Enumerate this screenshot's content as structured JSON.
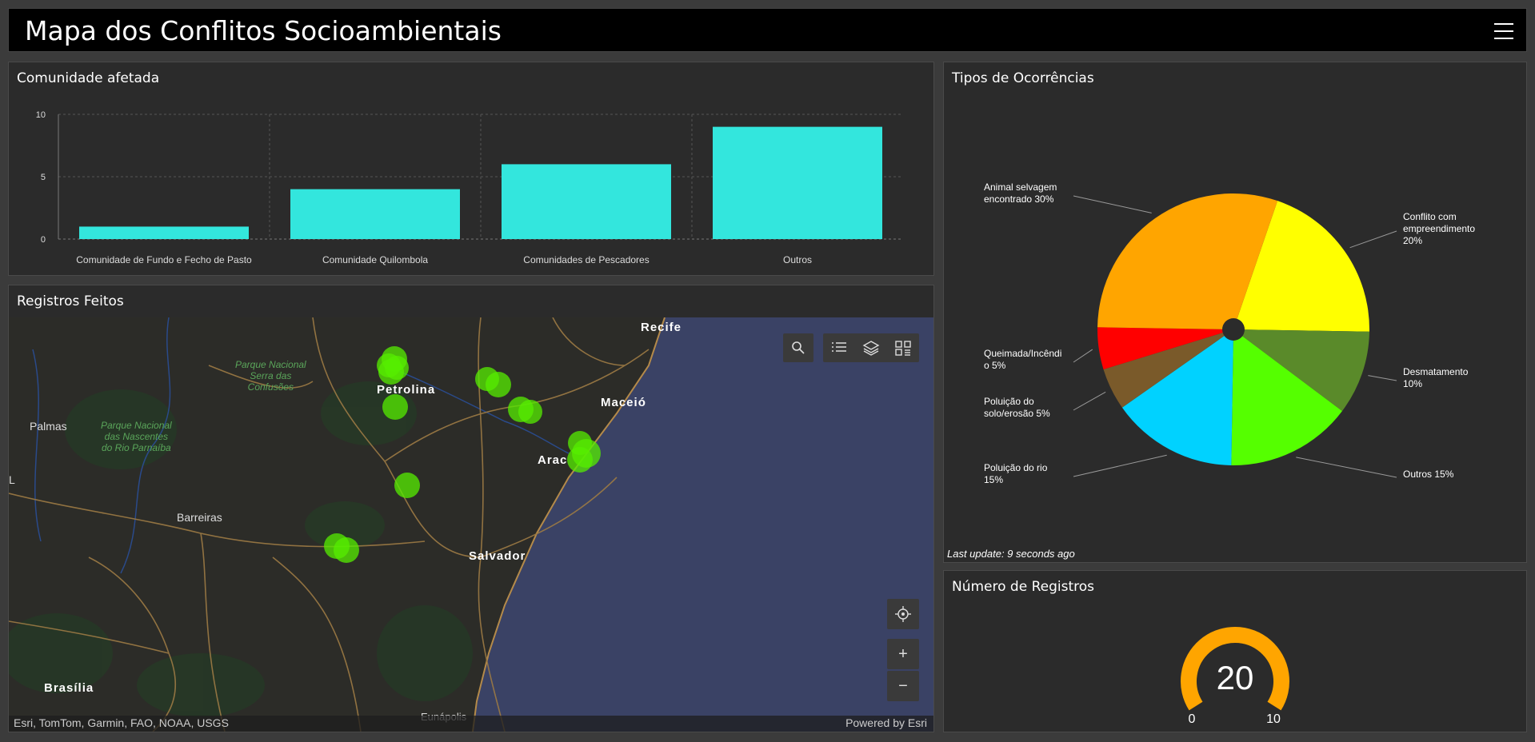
{
  "header": {
    "title": "Mapa dos Conflitos Socioambientais"
  },
  "bar_panel": {
    "title": "Comunidade afetada"
  },
  "map_panel": {
    "title": "Registros Feitos",
    "attribution": "Esri, TomTom, Garmin, FAO, NOAA, USGS",
    "powered_by": "Powered by Esri",
    "labels": {
      "recife": "Recife",
      "petrolina": "Petrolina",
      "maceio": "Maceió",
      "aracaju": "Arac",
      "palmas": "Palmas",
      "barreiras": "Barreiras",
      "salvador": "Salvador",
      "brasilia": "Brasília",
      "eunapolis": "Eunápolis",
      "park1": "Parque Nacional",
      "park1b": "Serra das",
      "park1c": "Confusões",
      "park2": "Parque Nacional",
      "park2b": "das Nascentes",
      "park2c": "do Rio Parnaíba",
      "edge": "L"
    },
    "tools": [
      "search-icon",
      "list-icon",
      "layers-icon",
      "qr-icon",
      "locate-icon",
      "zoom-in-icon",
      "zoom-out-icon"
    ],
    "zoom_in": "+",
    "zoom_out": "−"
  },
  "pie_panel": {
    "title": "Tipos de Ocorrências",
    "last_update": "Last update: 9 seconds ago"
  },
  "gauge_panel": {
    "title": "Número de Registros",
    "value": "20",
    "min": "0",
    "max": "10",
    "color": "#ffa500"
  },
  "chart_data": [
    {
      "type": "bar",
      "categories": [
        "Comunidade de Fundo e Fecho de Pasto",
        "Comunidade Quilombola",
        "Comunidades de Pescadores",
        "Outros"
      ],
      "values": [
        1,
        4,
        6,
        9
      ],
      "ylim": [
        0,
        10
      ],
      "yticks": [
        "0",
        "5",
        "10"
      ],
      "color": "#33e6dd",
      "grid": true
    },
    {
      "type": "pie",
      "slices": [
        {
          "label": "Conflito com empreendimento 20%",
          "lines": [
            "Conflito com",
            "empreendimento",
            "20%"
          ],
          "value": 20,
          "color": "#ffff00"
        },
        {
          "label": "Desmatamento 10%",
          "lines": [
            "Desmatamento",
            "10%"
          ],
          "value": 10,
          "color": "#5a8a2a"
        },
        {
          "label": "Outros 15%",
          "lines": [
            "Outros 15%"
          ],
          "value": 15,
          "color": "#55ff00"
        },
        {
          "label": "Poluição do rio 15%",
          "lines": [
            "Poluição do rio",
            "15%"
          ],
          "value": 15,
          "color": "#00d2ff"
        },
        {
          "label": "Poluição do solo/erosão 5%",
          "lines": [
            "Poluição do",
            "solo/erosão 5%"
          ],
          "value": 5,
          "color": "#7a5a2a"
        },
        {
          "label": "Queimada/Incêndio 5%",
          "lines": [
            "Queimada/Incêndi",
            "o 5%"
          ],
          "value": 5,
          "color": "#ff0000"
        },
        {
          "label": "Animal selvagem encontrado 30%",
          "lines": [
            "Animal selvagem",
            "encontrado 30%"
          ],
          "value": 30,
          "color": "#ffa500"
        }
      ]
    }
  ]
}
